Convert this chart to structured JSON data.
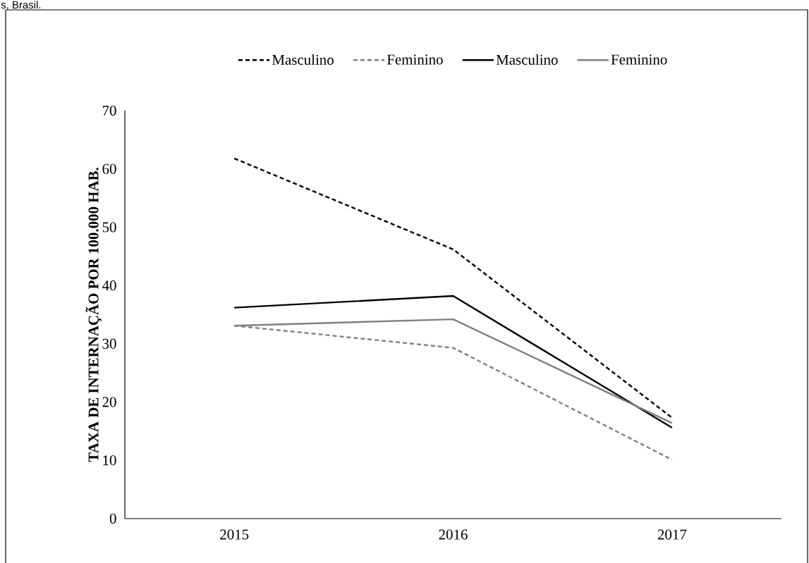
{
  "chart_data": {
    "type": "line",
    "ylabel": "TAXA DE INTERNAÇÃO POR 100.000 HAB.",
    "annotations": [
      "s, Brasil."
    ],
    "categories": [
      "2015",
      "2016",
      "2017"
    ],
    "series": [
      {
        "name": "Masculino",
        "color": "#000000",
        "line_style": "dashed",
        "values": [
          61.8,
          46.2,
          17.3
        ]
      },
      {
        "name": "Feminino",
        "color": "#808080",
        "line_style": "dashed",
        "values": [
          33.1,
          29.3,
          10.1
        ]
      },
      {
        "name": "Masculino",
        "color": "#000000",
        "line_style": "solid",
        "values": [
          36.2,
          38.2,
          15.6
        ]
      },
      {
        "name": "Feminino",
        "color": "#808080",
        "line_style": "solid",
        "values": [
          33.1,
          34.2,
          16.4
        ]
      }
    ],
    "ylim": [
      0,
      70
    ],
    "yticks": [
      0,
      10,
      20,
      30,
      40,
      50,
      60,
      70
    ],
    "legend": "top"
  }
}
